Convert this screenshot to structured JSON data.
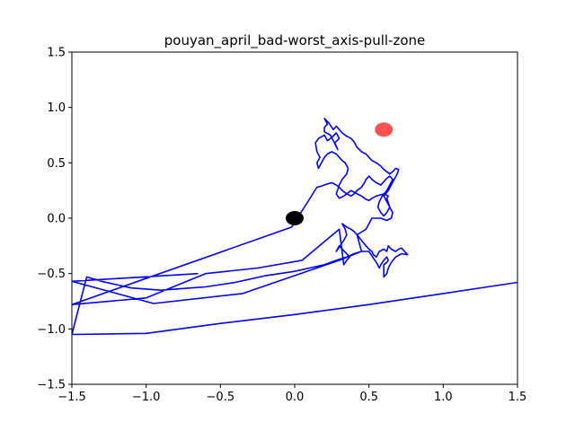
{
  "chart_data": {
    "type": "line",
    "title": "pouyan_april_bad-worst_axis-pull-zone",
    "xlabel": "",
    "ylabel": "",
    "xlim": [
      -1.5,
      1.5
    ],
    "ylim": [
      -1.5,
      1.5
    ],
    "xticks": [
      "−1.5",
      "−1.0",
      "−0.5",
      "0.0",
      "0.5",
      "1.0",
      "1.5"
    ],
    "yticks": [
      "−1.5",
      "−1.0",
      "−0.5",
      "0.0",
      "0.5",
      "1.0",
      "1.5"
    ],
    "grid": false,
    "legend": "none",
    "series": [
      {
        "color": "#0000ff",
        "x": [
          -0.65,
          -1.5,
          -0.95,
          -0.35,
          0.3,
          0.45,
          0.42,
          0.48,
          0.52,
          0.58,
          0.62,
          0.65,
          0.66,
          0.64,
          0.62,
          0.63,
          0.6,
          0.55,
          0.52,
          0.5,
          0.48,
          0.45,
          0.42,
          0.38,
          0.35,
          0.33,
          0.3,
          0.28,
          0.3,
          0.32,
          0.35,
          0.36,
          0.34,
          0.32,
          0.3,
          0.28,
          0.25,
          0.22,
          0.2,
          0.18,
          0.16,
          0.15,
          0.17,
          0.15,
          0.14,
          0.16,
          0.2,
          0.22,
          0.25,
          0.28,
          0.3,
          0.27,
          0.29,
          0.26,
          0.24,
          0.2,
          0.2,
          0.22,
          0.2,
          0.23,
          0.26,
          0.28,
          0.3,
          0.32,
          0.35,
          0.38,
          0.4,
          0.42,
          0.45,
          0.48,
          0.5,
          0.52,
          0.55,
          0.58,
          0.6,
          0.62,
          0.64,
          0.66,
          0.68,
          0.7,
          0.69,
          0.67,
          0.65,
          0.63,
          0.6,
          0.62,
          0.64,
          0.62,
          0.6,
          0.58,
          0.56,
          0.57,
          0.59,
          0.62,
          0.64,
          0.66,
          0.64,
          0.62,
          0.6,
          0.58,
          0.55,
          0.52,
          0.5,
          0.48,
          0.47,
          0.45,
          0.42,
          0.4,
          0.38,
          0.35,
          0.32,
          0.3,
          0.28,
          0.25,
          0.22,
          0.18,
          0.15,
          -0.02,
          -1.5,
          -1.0,
          -0.6,
          -0.25,
          0.05,
          0.3,
          0.33,
          0.35,
          0.37,
          0.3,
          0.28,
          0.33,
          0.35,
          0.34,
          0.32,
          0.35,
          0.38,
          0.4,
          0.42,
          0.45,
          0.48,
          0.5,
          0.52,
          0.53,
          0.55,
          0.57,
          0.6,
          0.62,
          0.63,
          0.65,
          0.68,
          0.7,
          0.72,
          0.74,
          0.76,
          0.72,
          0.68,
          0.65,
          0.63,
          0.62,
          0.6,
          0.6,
          0.6,
          0.62,
          0.63,
          0.62,
          0.6,
          0.58,
          0.57,
          0.55,
          0.53,
          0.5,
          0.45,
          0.4,
          0.35,
          0.28,
          0.2,
          0.1,
          0.0,
          -0.1,
          -0.2,
          -0.3,
          -0.4,
          -0.5,
          -0.6,
          -0.7,
          -0.8,
          -0.9,
          -1.0,
          -1.1,
          -1.2,
          -1.3,
          -1.4,
          -1.5,
          -1.0,
          -0.5,
          0.0,
          0.5,
          1.0,
          1.5
        ],
        "y": [
          -0.5,
          -0.57,
          -0.77,
          -0.68,
          -0.38,
          -0.3,
          -0.15,
          -0.1,
          0.0,
          0.0,
          -0.02,
          0.0,
          0.05,
          0.1,
          0.18,
          0.2,
          0.22,
          0.2,
          0.18,
          0.16,
          0.17,
          0.2,
          0.22,
          0.25,
          0.22,
          0.2,
          0.18,
          0.22,
          0.3,
          0.35,
          0.4,
          0.45,
          0.5,
          0.52,
          0.55,
          0.58,
          0.6,
          0.58,
          0.55,
          0.5,
          0.45,
          0.5,
          0.55,
          0.6,
          0.68,
          0.72,
          0.75,
          0.7,
          0.73,
          0.77,
          0.72,
          0.68,
          0.62,
          0.7,
          0.75,
          0.78,
          0.82,
          0.85,
          0.9,
          0.86,
          0.8,
          0.83,
          0.8,
          0.77,
          0.74,
          0.72,
          0.69,
          0.64,
          0.6,
          0.58,
          0.55,
          0.52,
          0.5,
          0.47,
          0.44,
          0.42,
          0.4,
          0.42,
          0.45,
          0.44,
          0.4,
          0.35,
          0.3,
          0.25,
          0.2,
          0.15,
          0.1,
          0.05,
          0.02,
          0.05,
          0.1,
          0.15,
          0.2,
          0.25,
          0.3,
          0.35,
          0.38,
          0.36,
          0.33,
          0.3,
          0.32,
          0.35,
          0.38,
          0.35,
          0.32,
          0.28,
          0.25,
          0.22,
          0.2,
          0.22,
          0.25,
          0.28,
          0.3,
          0.32,
          0.31,
          0.29,
          0.28,
          -0.08,
          -0.78,
          -0.72,
          -0.5,
          -0.45,
          -0.38,
          -0.1,
          -0.42,
          -0.38,
          -0.35,
          -0.25,
          -0.3,
          -0.2,
          -0.15,
          -0.1,
          -0.05,
          -0.08,
          -0.1,
          -0.12,
          -0.15,
          -0.2,
          -0.25,
          -0.28,
          -0.3,
          -0.33,
          -0.35,
          -0.3,
          -0.28,
          -0.3,
          -0.25,
          -0.28,
          -0.3,
          -0.28,
          -0.27,
          -0.3,
          -0.33,
          -0.32,
          -0.35,
          -0.4,
          -0.45,
          -0.5,
          -0.53,
          -0.47,
          -0.42,
          -0.4,
          -0.38,
          -0.35,
          -0.38,
          -0.42,
          -0.45,
          -0.4,
          -0.36,
          -0.3,
          -0.3,
          -0.32,
          -0.35,
          -0.38,
          -0.42,
          -0.45,
          -0.48,
          -0.5,
          -0.52,
          -0.55,
          -0.58,
          -0.6,
          -0.62,
          -0.63,
          -0.64,
          -0.65,
          -0.64,
          -0.63,
          -0.6,
          -0.57,
          -0.53,
          -1.05,
          -1.04,
          -0.95,
          -0.87,
          -0.78,
          -0.68,
          -0.58
        ]
      }
    ],
    "markers": [
      {
        "x": 0.0,
        "y": 0.0,
        "color": "#000000"
      },
      {
        "x": 0.6,
        "y": 0.8,
        "color": "#ff3333"
      }
    ]
  }
}
